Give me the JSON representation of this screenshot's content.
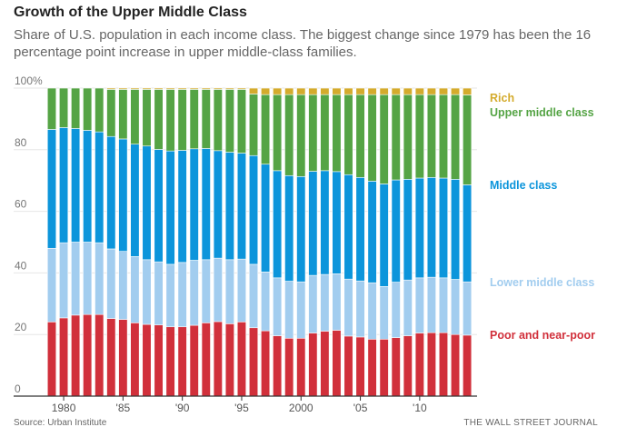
{
  "title": "Growth of the Upper Middle Class",
  "subtitle": "Share of U.S. population in each income class. The biggest change since 1979 has been the 16 percentage point increase in upper middle-class families.",
  "source": "Source: Urban Institute",
  "publisher": "THE WALL STREET JOURNAL",
  "chart_data": {
    "type": "bar",
    "stacked": true,
    "x": [
      1979,
      1980,
      1981,
      1982,
      1983,
      1984,
      1985,
      1986,
      1987,
      1988,
      1989,
      1990,
      1991,
      1992,
      1993,
      1994,
      1995,
      1996,
      1997,
      1998,
      1999,
      2000,
      2001,
      2002,
      2003,
      2004,
      2005,
      2006,
      2007,
      2008,
      2009,
      2010,
      2011,
      2012,
      2013,
      2014
    ],
    "xticks": [
      1980,
      1985,
      1990,
      1995,
      2000,
      2005,
      2010
    ],
    "xtick_labels": [
      "1980",
      "'85",
      "'90",
      "'95",
      "2000",
      "'05",
      "'10"
    ],
    "yticks": [
      0,
      20,
      40,
      60,
      80,
      100
    ],
    "ytick_labels": [
      "0",
      "20",
      "40",
      "60",
      "80",
      "100%"
    ],
    "ylim": [
      0,
      100
    ],
    "grid": true,
    "legend_placement": "right, inline labels",
    "series": [
      {
        "name": "Poor and near-poor",
        "color": "#d1303b",
        "values": [
          24.1,
          25.4,
          26.3,
          26.5,
          26.5,
          25.2,
          24.9,
          23.8,
          23.3,
          23.1,
          22.5,
          22.5,
          23.0,
          23.8,
          24.2,
          23.5,
          24.1,
          22.2,
          21.2,
          19.6,
          18.8,
          18.8,
          20.5,
          21.1,
          21.4,
          19.5,
          19.2,
          18.5,
          18.5,
          19.0,
          19.6,
          20.5,
          20.6,
          20.6,
          20.0,
          19.8
        ]
      },
      {
        "name": "Lower middle class",
        "color": "#a2cdef",
        "values": [
          23.9,
          24.4,
          23.7,
          23.5,
          23.3,
          22.6,
          22.1,
          21.5,
          21.0,
          20.5,
          20.3,
          20.9,
          21.1,
          20.5,
          20.6,
          20.8,
          20.4,
          20.6,
          19.1,
          18.8,
          18.5,
          18.3,
          18.7,
          18.4,
          18.3,
          18.5,
          18.2,
          18.3,
          17.1,
          18.0,
          18.1,
          17.9,
          18.0,
          17.8,
          17.9,
          17.3
        ]
      },
      {
        "name": "Middle class",
        "color": "#0c95db",
        "values": [
          38.6,
          37.4,
          36.9,
          36.3,
          36.0,
          36.5,
          36.5,
          36.5,
          36.9,
          36.5,
          36.8,
          36.4,
          36.2,
          36.1,
          34.9,
          34.9,
          34.4,
          35.3,
          35.0,
          34.8,
          34.3,
          34.2,
          33.8,
          33.7,
          33.2,
          33.9,
          33.6,
          33.0,
          33.3,
          33.2,
          32.7,
          32.4,
          32.4,
          32.4,
          32.5,
          31.5
        ]
      },
      {
        "name": "Upper middle class",
        "color": "#55a445",
        "values": [
          13.4,
          12.8,
          13.1,
          13.7,
          14.2,
          15.3,
          16.1,
          17.8,
          18.4,
          19.5,
          20.0,
          19.8,
          19.3,
          19.2,
          19.9,
          20.4,
          20.7,
          20.0,
          22.6,
          24.7,
          26.3,
          26.6,
          24.9,
          24.7,
          25.0,
          26.0,
          26.9,
          28.1,
          29.0,
          27.7,
          27.5,
          27.1,
          26.9,
          27.1,
          27.5,
          29.2
        ]
      },
      {
        "name": "Rich",
        "color": "#d4ab2d",
        "values": [
          0,
          0,
          0,
          0,
          0,
          0.4,
          0.4,
          0.4,
          0.4,
          0.4,
          0.4,
          0.4,
          0.4,
          0.4,
          0.4,
          0.4,
          0.4,
          1.9,
          2.1,
          2.1,
          2.1,
          2.1,
          2.1,
          2.1,
          2.1,
          2.1,
          2.1,
          2.1,
          2.1,
          2.1,
          2.1,
          2.1,
          2.1,
          2.1,
          2.1,
          2.2
        ]
      }
    ]
  }
}
